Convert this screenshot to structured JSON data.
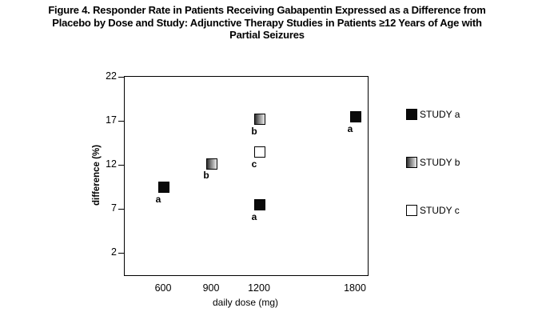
{
  "figure": {
    "title_lines": [
      "Figure 4. Responder Rate in Patients Receiving Gabapentin Expressed as a Difference from",
      "Placebo by Dose and Study: Adjunctive Therapy Studies in Patients ≥12 Years of Age with",
      "Partial Seizures"
    ]
  },
  "chart_data": {
    "type": "scatter",
    "title": "Figure 4. Responder Rate in Patients Receiving Gabapentin Expressed as a Difference from Placebo by Dose and Study: Adjunctive Therapy Studies in Patients ≥12 Years of Age with Partial Seizures",
    "xlabel": "daily dose (mg)",
    "ylabel": "difference (%)",
    "x_ticks": [
      600,
      900,
      1200,
      1800
    ],
    "y_ticks": [
      22,
      17,
      12,
      7,
      2
    ],
    "xlim": [
      360,
      1880
    ],
    "ylim": [
      -0.5,
      22
    ],
    "grid": false,
    "series": [
      {
        "name": "STUDY a",
        "marker": "black",
        "points": [
          {
            "x": 600,
            "y": 9.5,
            "label": "a"
          },
          {
            "x": 1200,
            "y": 7.5,
            "label": "a"
          },
          {
            "x": 1800,
            "y": 17.5,
            "label": "a"
          }
        ]
      },
      {
        "name": "STUDY b",
        "marker": "gradient",
        "points": [
          {
            "x": 900,
            "y": 12.2,
            "label": "b"
          },
          {
            "x": 1200,
            "y": 17.2,
            "label": "b"
          }
        ]
      },
      {
        "name": "STUDY c",
        "marker": "white",
        "points": [
          {
            "x": 1200,
            "y": 13.5,
            "label": "c"
          }
        ]
      }
    ],
    "legend": {
      "position": "right",
      "items": [
        {
          "label": "STUDY a",
          "marker": "black"
        },
        {
          "label": "STUDY b",
          "marker": "gradient"
        },
        {
          "label": "STUDY c",
          "marker": "white"
        }
      ]
    }
  },
  "colors": {
    "marker_black": "#0a0a0a",
    "marker_white": "#ffffff",
    "axis": "#000000"
  }
}
